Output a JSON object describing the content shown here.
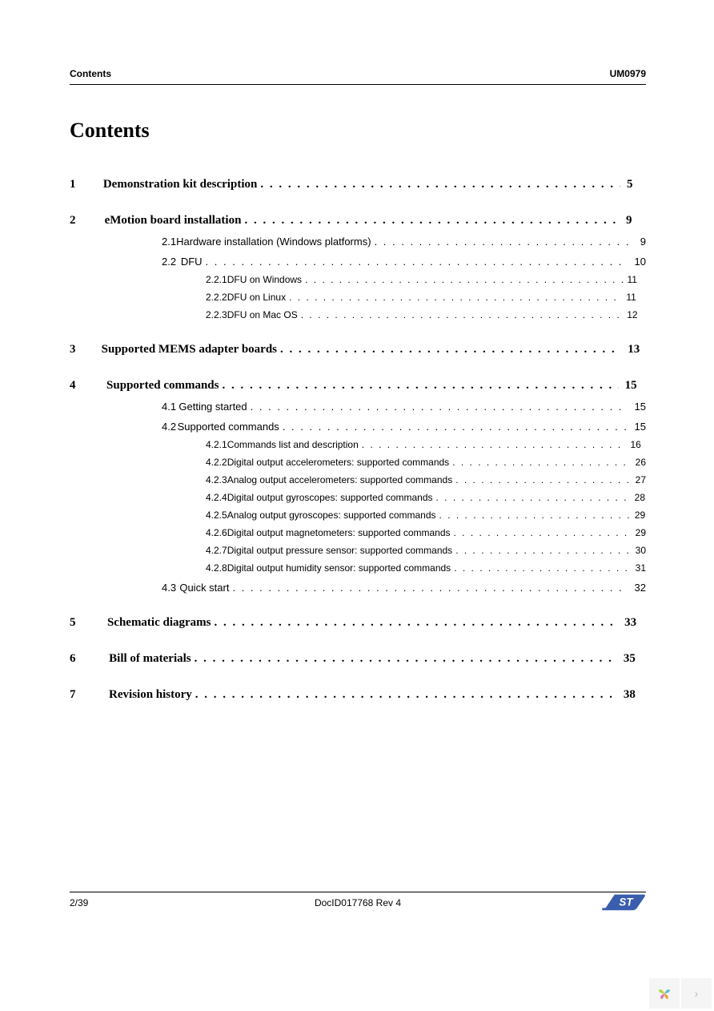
{
  "header": {
    "left": "Contents",
    "right": "UM0979"
  },
  "title": "Contents",
  "toc": [
    {
      "level": 1,
      "num": "1",
      "text": "Demonstration kit description",
      "page": "5"
    },
    {
      "level": 1,
      "num": "2",
      "text": "eMotion board installation",
      "page": "9"
    },
    {
      "level": 2,
      "num": "2.1",
      "text": "Hardware installation (Windows platforms)",
      "page": "9"
    },
    {
      "level": 2,
      "num": "2.2",
      "text": "DFU",
      "page": "10"
    },
    {
      "level": 3,
      "num": "2.2.1",
      "text": "DFU on Windows",
      "page": "11"
    },
    {
      "level": 3,
      "num": "2.2.2",
      "text": "DFU on Linux",
      "page": "11"
    },
    {
      "level": 3,
      "num": "2.2.3",
      "text": "DFU on Mac OS",
      "page": "12"
    },
    {
      "level": 1,
      "num": "3",
      "text": "Supported MEMS adapter boards",
      "page": "13"
    },
    {
      "level": 1,
      "num": "4",
      "text": "Supported commands",
      "page": "15"
    },
    {
      "level": 2,
      "num": "4.1",
      "text": "Getting started",
      "page": "15"
    },
    {
      "level": 2,
      "num": "4.2",
      "text": "Supported commands",
      "page": "15"
    },
    {
      "level": 3,
      "num": "4.2.1",
      "text": "Commands list and description",
      "page": "16"
    },
    {
      "level": 3,
      "num": "4.2.2",
      "text": "Digital output accelerometers: supported commands",
      "page": "26"
    },
    {
      "level": 3,
      "num": "4.2.3",
      "text": "Analog output accelerometers: supported commands",
      "page": "27"
    },
    {
      "level": 3,
      "num": "4.2.4",
      "text": "Digital output gyroscopes: supported commands",
      "page": "28"
    },
    {
      "level": 3,
      "num": "4.2.5",
      "text": "Analog output gyroscopes: supported commands",
      "page": "29"
    },
    {
      "level": 3,
      "num": "4.2.6",
      "text": "Digital output magnetometers: supported commands",
      "page": "29"
    },
    {
      "level": 3,
      "num": "4.2.7",
      "text": "Digital output pressure sensor: supported commands",
      "page": "30"
    },
    {
      "level": 3,
      "num": "4.2.8",
      "text": "Digital output humidity sensor: supported commands",
      "page": "31"
    },
    {
      "level": 2,
      "num": "4.3",
      "text": "Quick start",
      "page": "32"
    },
    {
      "level": 1,
      "num": "5",
      "text": "Schematic diagrams",
      "page": "33"
    },
    {
      "level": 1,
      "num": "6",
      "text": "Bill of materials",
      "page": "35"
    },
    {
      "level": 1,
      "num": "7",
      "text": "Revision history",
      "page": "38"
    }
  ],
  "footer": {
    "page": "2/39",
    "docid": "DocID017768 Rev 4"
  },
  "logo_colors": {
    "fill": "#3a5dae",
    "text": "#ffffff"
  },
  "widget_colors": {
    "p1": "#b8d432",
    "p2": "#5bc4c4",
    "p3": "#e8a33d",
    "p4": "#d97aa6"
  }
}
